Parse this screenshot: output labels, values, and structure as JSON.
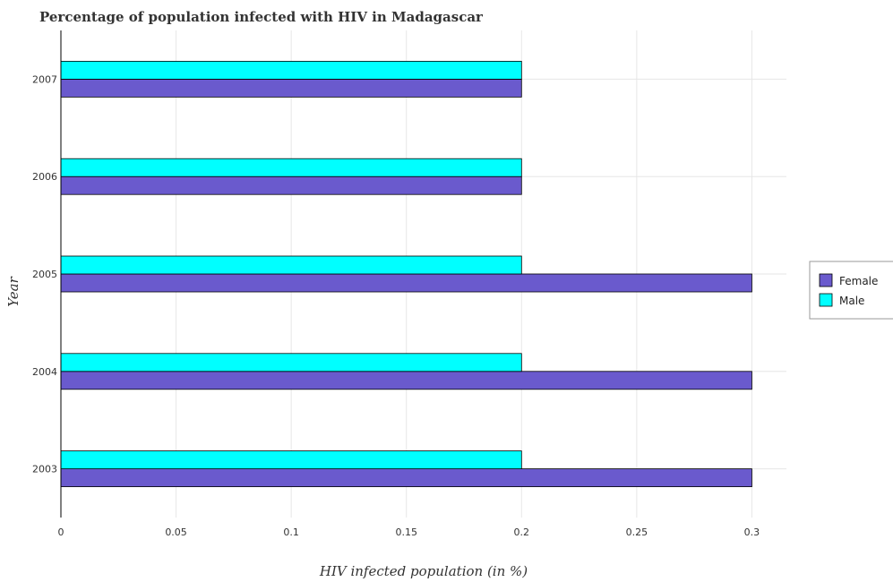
{
  "chart_data": {
    "type": "bar",
    "orientation": "horizontal",
    "title": "Percentage of population infected with HIV in Madagascar",
    "xlabel": "HIV infected population (in %)",
    "ylabel": "Year",
    "categories": [
      "2003",
      "2004",
      "2005",
      "2006",
      "2007"
    ],
    "series": [
      {
        "name": "Female",
        "color": "#6a5acd",
        "values": [
          0.3,
          0.3,
          0.3,
          0.2,
          0.2
        ]
      },
      {
        "name": "Male",
        "color": "#00ffff",
        "values": [
          0.2,
          0.2,
          0.2,
          0.2,
          0.2
        ]
      }
    ],
    "xlim": [
      0,
      0.315
    ],
    "xticks": [
      0,
      0.05,
      0.1,
      0.15,
      0.2,
      0.25,
      0.3
    ],
    "xtick_labels": [
      "0",
      "0.05",
      "0.1",
      "0.15",
      "0.2",
      "0.25",
      "0.3"
    ],
    "grid": true,
    "legend_position": "right"
  }
}
